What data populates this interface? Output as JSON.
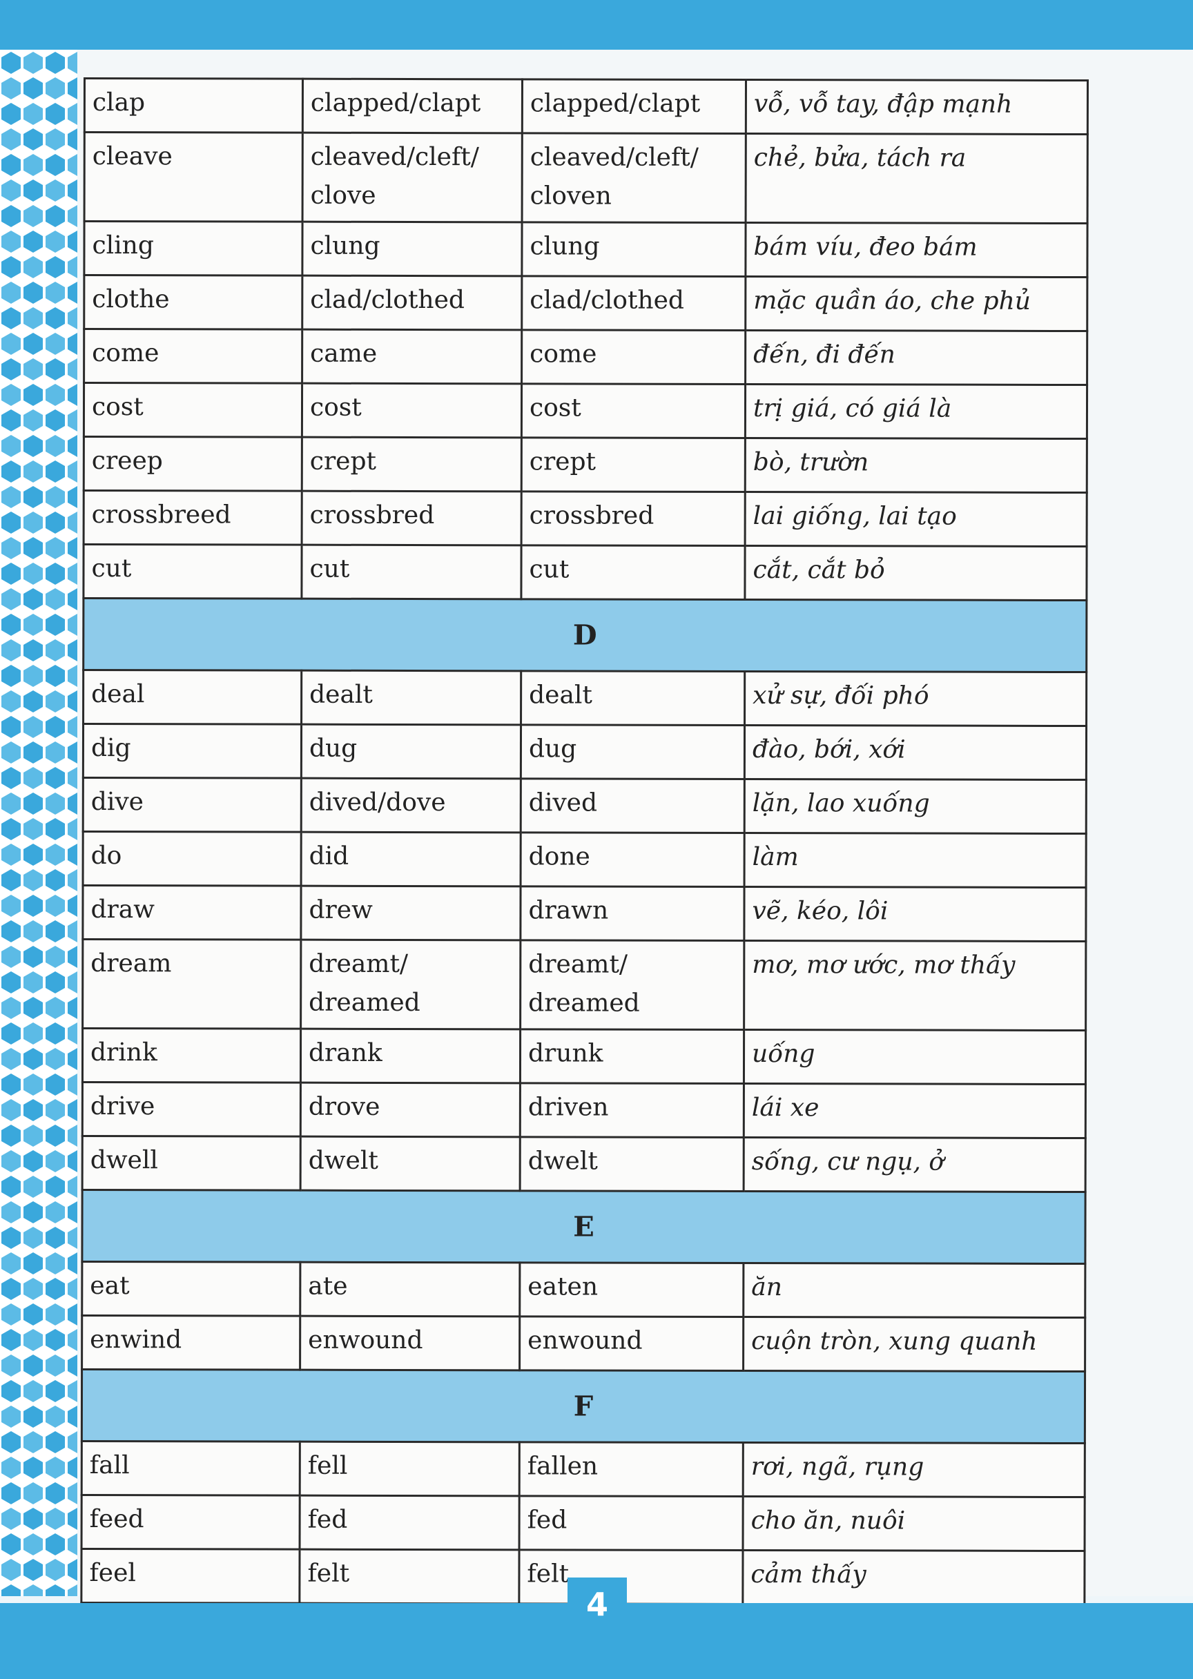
{
  "page_number": "4",
  "colors": {
    "band": "#3aa8dc",
    "section_header": "#8ecbea"
  },
  "sections": [
    {
      "letter": "",
      "rows": [
        [
          "clap",
          "clapped/clapt",
          "clapped/clapt",
          "vỗ, vỗ tay, đập mạnh"
        ],
        [
          "cleave",
          "cleaved/cleft/ clove",
          "cleaved/cleft/ cloven",
          "chẻ, bửa, tách ra"
        ],
        [
          "cling",
          "clung",
          "clung",
          "bám víu, đeo bám"
        ],
        [
          "clothe",
          "clad/clothed",
          "clad/clothed",
          "mặc quần áo, che phủ"
        ],
        [
          "come",
          "came",
          "come",
          "đến, đi đến"
        ],
        [
          "cost",
          "cost",
          "cost",
          "trị giá, có giá là"
        ],
        [
          "creep",
          "crept",
          "crept",
          "bò, trườn"
        ],
        [
          "crossbreed",
          "crossbred",
          "crossbred",
          "lai giống, lai tạo"
        ],
        [
          "cut",
          "cut",
          "cut",
          "cắt, cắt bỏ"
        ]
      ]
    },
    {
      "letter": "D",
      "rows": [
        [
          "deal",
          "dealt",
          "dealt",
          "xử sự, đối phó"
        ],
        [
          "dig",
          "dug",
          "dug",
          "đào, bới, xới"
        ],
        [
          "dive",
          "dived/dove",
          "dived",
          "lặn, lao xuống"
        ],
        [
          "do",
          "did",
          "done",
          "làm"
        ],
        [
          "draw",
          "drew",
          "drawn",
          "vẽ, kéo, lôi"
        ],
        [
          "dream",
          "dreamt/ dreamed",
          "dreamt/ dreamed",
          "mơ, mơ ước, mơ thấy"
        ],
        [
          "drink",
          "drank",
          "drunk",
          "uống"
        ],
        [
          "drive",
          "drove",
          "driven",
          "lái xe"
        ],
        [
          "dwell",
          "dwelt",
          "dwelt",
          "sống, cư ngụ, ở"
        ]
      ]
    },
    {
      "letter": "E",
      "rows": [
        [
          "eat",
          "ate",
          "eaten",
          "ăn"
        ],
        [
          "enwind",
          "enwound",
          "enwound",
          "cuộn tròn, xung quanh"
        ]
      ]
    },
    {
      "letter": "F",
      "rows": [
        [
          "fall",
          "fell",
          "fallen",
          "rơi, ngã, rụng"
        ],
        [
          "feed",
          "fed",
          "fed",
          "cho ăn, nuôi"
        ],
        [
          "feel",
          "felt",
          "felt",
          "cảm thấy"
        ]
      ]
    }
  ]
}
